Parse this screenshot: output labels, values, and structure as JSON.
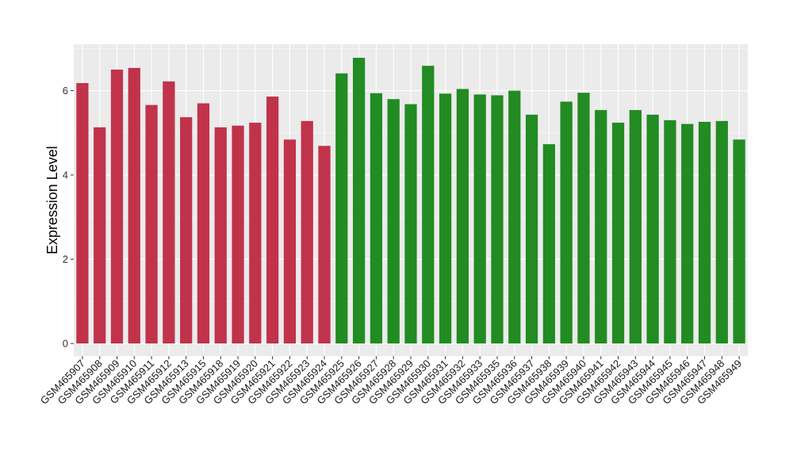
{
  "chart_data": {
    "type": "bar",
    "title": "",
    "xlabel": "",
    "ylabel": "Expression Level",
    "ylim": [
      -0.3,
      7.1
    ],
    "yticks": [
      0,
      2,
      4,
      6
    ],
    "grid": true,
    "legend": "none",
    "background": "#ebebeb",
    "gridline_color": "#ffffff",
    "categories": [
      "GSM465907",
      "GSM465908",
      "GSM465909",
      "GSM465910",
      "GSM465911",
      "GSM465912",
      "GSM465913",
      "GSM465915",
      "GSM465918",
      "GSM465919",
      "GSM465920",
      "GSM465921",
      "GSM465922",
      "GSM465923",
      "GSM465924",
      "GSM465925",
      "GSM465926",
      "GSM465927",
      "GSM465928",
      "GSM465929",
      "GSM465930",
      "GSM465931",
      "GSM465932",
      "GSM465933",
      "GSM465935",
      "GSM465936",
      "GSM465937",
      "GSM465938",
      "GSM465939",
      "GSM465940",
      "GSM465941",
      "GSM465942",
      "GSM465943",
      "GSM465944",
      "GSM465945",
      "GSM465946",
      "GSM465947",
      "GSM465948",
      "GSM465949"
    ],
    "values": [
      6.18,
      5.13,
      6.5,
      6.54,
      5.66,
      6.22,
      5.37,
      5.7,
      5.13,
      5.17,
      5.24,
      5.86,
      4.84,
      5.28,
      4.69,
      6.41,
      6.78,
      5.94,
      5.8,
      5.68,
      6.59,
      5.93,
      6.04,
      5.91,
      5.89,
      6.0,
      5.43,
      4.73,
      5.74,
      5.95,
      5.54,
      5.24,
      5.54,
      5.43,
      5.3,
      5.21,
      5.26,
      5.28,
      4.84
    ],
    "groups": [
      {
        "color": "#c0334b",
        "count": 15
      },
      {
        "color": "#228b22",
        "count": 24
      }
    ]
  }
}
